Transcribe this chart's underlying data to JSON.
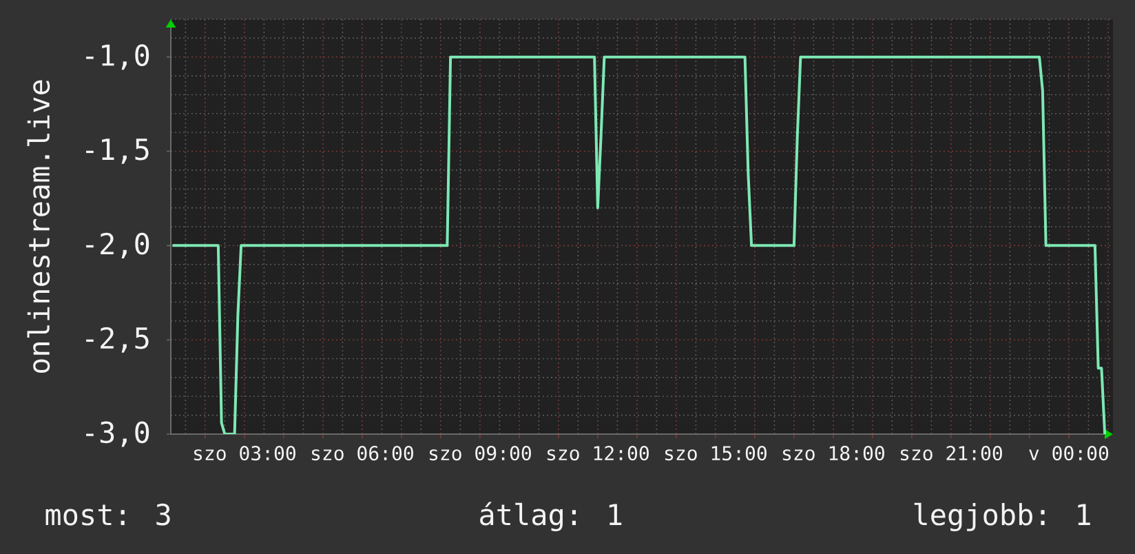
{
  "chart_data": {
    "type": "line",
    "ylabel": "onlinestream.live",
    "categories": [
      null,
      null,
      null,
      null,
      null,
      null,
      null,
      null,
      null,
      null,
      null,
      null,
      null,
      null,
      null,
      null,
      null,
      null,
      null,
      null,
      null,
      null,
      "szo 03:00",
      null,
      null,
      null,
      null,
      null,
      null,
      null,
      null,
      null,
      null,
      null,
      null,
      null,
      null,
      null,
      null,
      null,
      null,
      null,
      null,
      null,
      null,
      null,
      null,
      null,
      null,
      null,
      null,
      null,
      null,
      null,
      null,
      null,
      null,
      null,
      "szo 06:00",
      null,
      null,
      null,
      null,
      null,
      null,
      null,
      null,
      null,
      null,
      null,
      null,
      null,
      null,
      null,
      null,
      null,
      null,
      null,
      null,
      null,
      null,
      null,
      null,
      null,
      null,
      null,
      null,
      null,
      null,
      null,
      null,
      null,
      null,
      null,
      "szo 09:00",
      null,
      null,
      null,
      null,
      null,
      null,
      null,
      null,
      null,
      null,
      null,
      null,
      null,
      null,
      null,
      null,
      null,
      null,
      null,
      null,
      null,
      null,
      null,
      null,
      null,
      null,
      null,
      null,
      null,
      null,
      null,
      null,
      null,
      null,
      null,
      "szo 12:00",
      null,
      null,
      null,
      null,
      null,
      null,
      null,
      null,
      null,
      null,
      null,
      null,
      null,
      null,
      null,
      null,
      null,
      null,
      null,
      null,
      null,
      null,
      null,
      null,
      null,
      null,
      null,
      null,
      null,
      null,
      null,
      null,
      null,
      null,
      null,
      "szo 15:00",
      null,
      null,
      null,
      null,
      null,
      null,
      null,
      null,
      null,
      null,
      null,
      null,
      null,
      null,
      null,
      null,
      null,
      null,
      null,
      null,
      null,
      null,
      null,
      null,
      null,
      null,
      null,
      null,
      null,
      null,
      null,
      null,
      null,
      null,
      null,
      "szo 18:00",
      null,
      null,
      null,
      null,
      null,
      null,
      null,
      null,
      null,
      null,
      null,
      null,
      null,
      null,
      null,
      null,
      null,
      null,
      null,
      null,
      null,
      null,
      null,
      null,
      null,
      null,
      null,
      null,
      null,
      null,
      null,
      null,
      null,
      null,
      null,
      "szo 21:00",
      null,
      null,
      null,
      null,
      null,
      null,
      null,
      null,
      null,
      null,
      null,
      null,
      null,
      null,
      null,
      null,
      null,
      null,
      null,
      null,
      null,
      null,
      null,
      null,
      null,
      null,
      null,
      null,
      null,
      null,
      null,
      null,
      null,
      null,
      null,
      "v 00:00",
      null,
      null,
      null,
      null,
      null,
      null,
      null,
      null,
      null,
      null,
      null,
      null,
      null
    ],
    "values": [
      -2,
      -2,
      -2,
      -2,
      -2,
      -2,
      -2,
      -2,
      -2,
      -2,
      -2,
      -2,
      -2,
      -2,
      -2,
      -2.94,
      -3,
      -3,
      -3,
      -3,
      -2.37,
      -2,
      -2,
      -2,
      -2,
      -2,
      -2,
      -2,
      -2,
      -2,
      -2,
      -2,
      -2,
      -2,
      -2,
      -2,
      -2,
      -2,
      -2,
      -2,
      -2,
      -2,
      -2,
      -2,
      -2,
      -2,
      -2,
      -2,
      -2,
      -2,
      -2,
      -2,
      -2,
      -2,
      -2,
      -2,
      -2,
      -2,
      -2,
      -2,
      -2,
      -2,
      -2,
      -2,
      -2,
      -2,
      -2,
      -2,
      -2,
      -2,
      -2,
      -2,
      -2,
      -2,
      -2,
      -2,
      -2,
      -2,
      -2,
      -2,
      -2,
      -2,
      -2,
      -2,
      -2,
      -1,
      -1,
      -1,
      -1,
      -1,
      -1,
      -1,
      -1,
      -1,
      -1,
      -1,
      -1,
      -1,
      -1,
      -1,
      -1,
      -1,
      -1,
      -1,
      -1,
      -1,
      -1,
      -1,
      -1,
      -1,
      -1,
      -1,
      -1,
      -1,
      -1,
      -1,
      -1,
      -1,
      -1,
      -1,
      -1,
      -1,
      -1,
      -1,
      -1,
      -1,
      -1,
      -1,
      -1,
      -1,
      -1.8,
      -1.42,
      -1,
      -1,
      -1,
      -1,
      -1,
      -1,
      -1,
      -1,
      -1,
      -1,
      -1,
      -1,
      -1,
      -1,
      -1,
      -1,
      -1,
      -1,
      -1,
      -1,
      -1,
      -1,
      -1,
      -1,
      -1,
      -1,
      -1,
      -1,
      -1,
      -1,
      -1,
      -1,
      -1,
      -1,
      -1,
      -1,
      -1,
      -1,
      -1,
      -1,
      -1,
      -1,
      -1,
      -1,
      -1.62,
      -2,
      -2,
      -2,
      -2,
      -2,
      -2,
      -2,
      -2,
      -2,
      -2,
      -2,
      -2,
      -2,
      -2,
      -1.43,
      -1,
      -1,
      -1,
      -1,
      -1,
      -1,
      -1,
      -1,
      -1,
      -1,
      -1,
      -1,
      -1,
      -1,
      -1,
      -1,
      -1,
      -1,
      -1,
      -1,
      -1,
      -1,
      -1,
      -1,
      -1,
      -1,
      -1,
      -1,
      -1,
      -1,
      -1,
      -1,
      -1,
      -1,
      -1,
      -1,
      -1,
      -1,
      -1,
      -1,
      -1,
      -1,
      -1,
      -1,
      -1,
      -1,
      -1,
      -1,
      -1,
      -1,
      -1,
      -1,
      -1,
      -1,
      -1,
      -1,
      -1,
      -1,
      -1,
      -1,
      -1,
      -1,
      -1,
      -1,
      -1,
      -1,
      -1,
      -1,
      -1,
      -1,
      -1,
      -1,
      -1,
      -1,
      -1.18,
      -2,
      -2,
      -2,
      -2,
      -2,
      -2,
      -2,
      -2,
      -2,
      -2,
      -2,
      -2,
      -2,
      -2,
      -2,
      -2,
      -2.65,
      -2.65,
      -3,
      null,
      null
    ],
    "color": "#7de8b4",
    "line_style": "solid",
    "ylim": [
      -3,
      -0.8
    ],
    "yticks": [
      {
        "value": -3,
        "label": "-3,0"
      },
      {
        "value": -2.5,
        "label": "-2,5"
      },
      {
        "value": -2,
        "label": "-2,0"
      },
      {
        "value": -1.5,
        "label": "-1,5"
      },
      {
        "value": -1,
        "label": "-1,0"
      }
    ],
    "grid": true,
    "annotations": [
      "most: 3",
      "átlag: 1",
      "legjobb: 1"
    ]
  }
}
